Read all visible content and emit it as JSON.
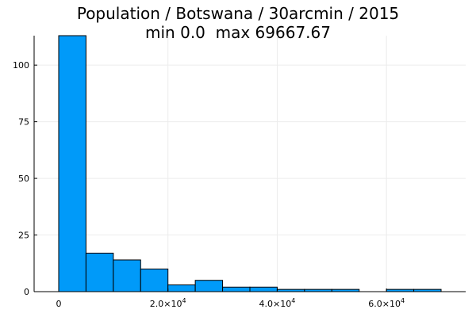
{
  "chart_data": {
    "type": "bar",
    "subtype": "histogram",
    "title_lines": [
      "Population / Botswana / 30arcmin / 2015",
      "min 0.0  max 69667.67"
    ],
    "xlabel": "",
    "ylabel": "",
    "bins": [
      {
        "x0": 0,
        "x1": 5000,
        "count": 113
      },
      {
        "x0": 5000,
        "x1": 10000,
        "count": 17
      },
      {
        "x0": 10000,
        "x1": 15000,
        "count": 14
      },
      {
        "x0": 15000,
        "x1": 20000,
        "count": 10
      },
      {
        "x0": 20000,
        "x1": 25000,
        "count": 3
      },
      {
        "x0": 25000,
        "x1": 30000,
        "count": 5
      },
      {
        "x0": 30000,
        "x1": 35000,
        "count": 2
      },
      {
        "x0": 35000,
        "x1": 40000,
        "count": 2
      },
      {
        "x0": 40000,
        "x1": 45000,
        "count": 1
      },
      {
        "x0": 45000,
        "x1": 50000,
        "count": 1
      },
      {
        "x0": 50000,
        "x1": 55000,
        "count": 1
      },
      {
        "x0": 55000,
        "x1": 60000,
        "count": 0
      },
      {
        "x0": 60000,
        "x1": 65000,
        "count": 1
      },
      {
        "x0": 65000,
        "x1": 70000,
        "count": 1
      }
    ],
    "xlim": [
      -4500,
      74500
    ],
    "ylim": [
      0,
      113
    ],
    "x_ticks": [
      {
        "value": 0,
        "mantissa": "0",
        "exponent": ""
      },
      {
        "value": 20000,
        "mantissa": "2.0×10",
        "exponent": "4"
      },
      {
        "value": 40000,
        "mantissa": "4.0×10",
        "exponent": "4"
      },
      {
        "value": 60000,
        "mantissa": "6.0×10",
        "exponent": "4"
      }
    ],
    "y_ticks": [
      {
        "value": 0,
        "label": "0"
      },
      {
        "value": 25,
        "label": "25"
      },
      {
        "value": 50,
        "label": "50"
      },
      {
        "value": 75,
        "label": "75"
      },
      {
        "value": 100,
        "label": "100"
      }
    ],
    "grid": true,
    "legend": "none",
    "colors": {
      "bar_fill": "#009af9",
      "bar_stroke": "#000000",
      "grid": "#ececec",
      "axis": "#000000",
      "text": "#000000"
    }
  }
}
